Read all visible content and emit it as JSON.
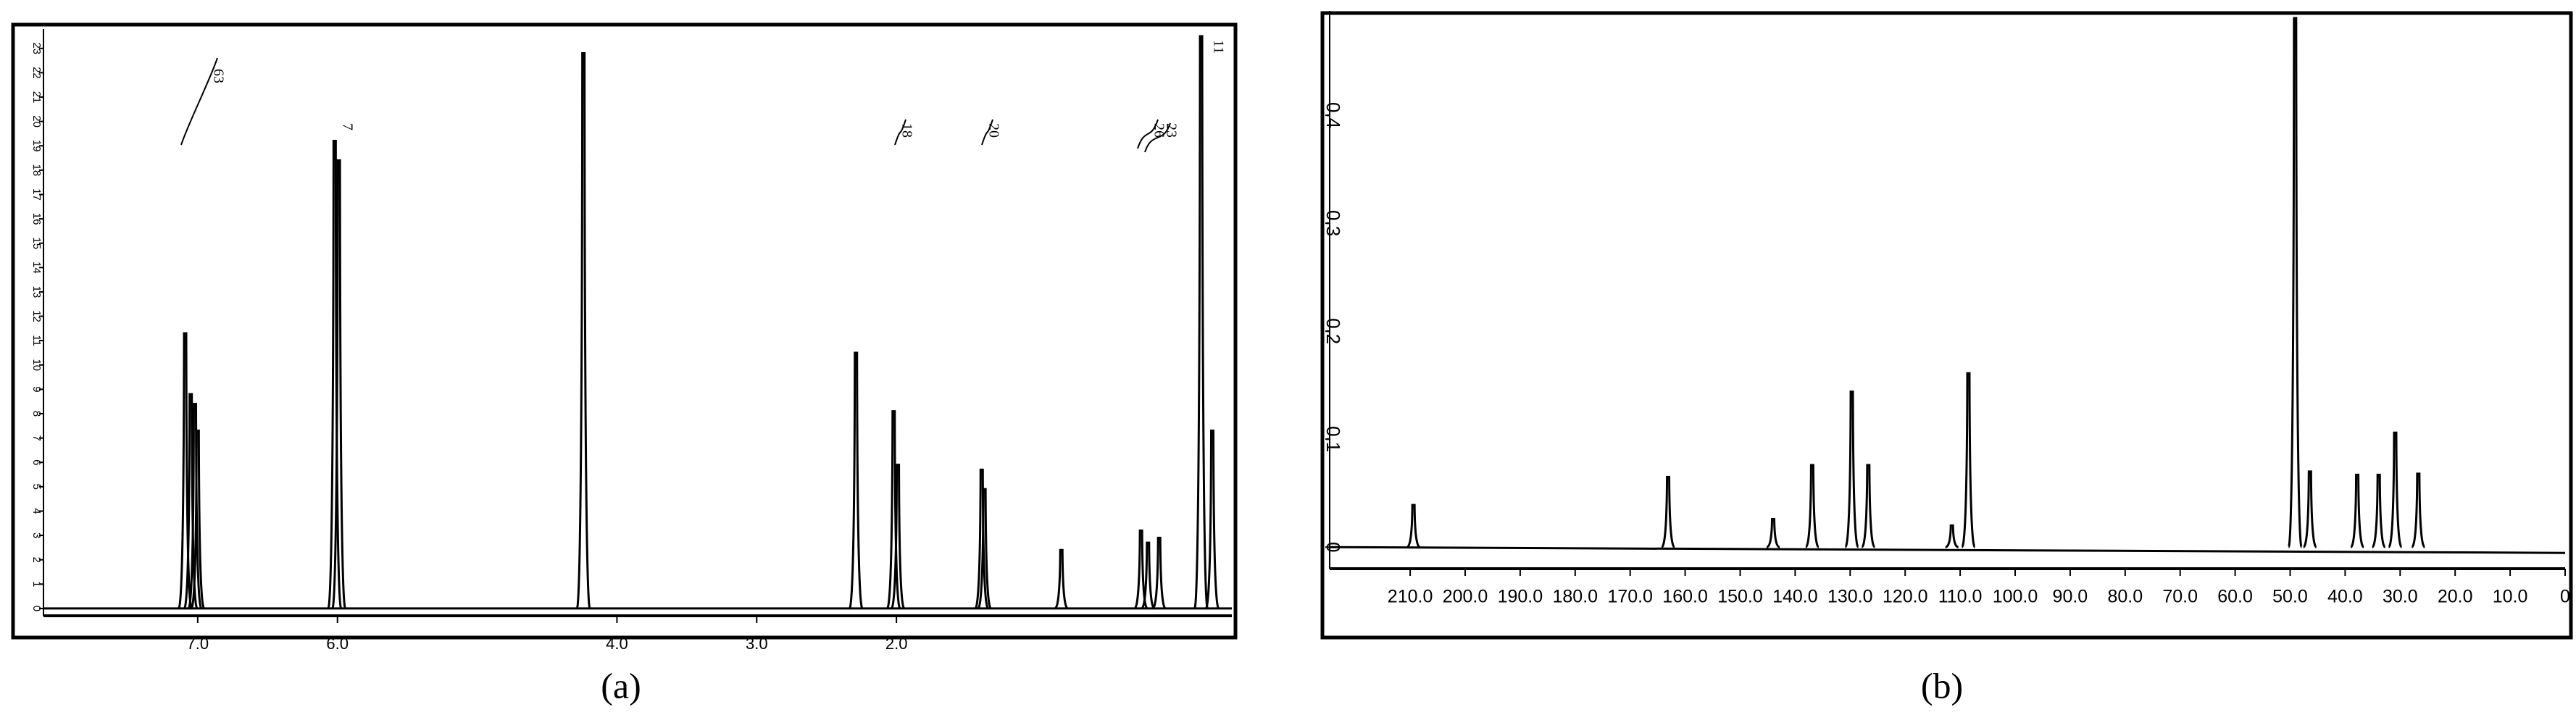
{
  "chart_data": [
    {
      "type": "spectrum",
      "caption": "(a)",
      "color": "#000000",
      "x": [
        7.09,
        7.05,
        7.02,
        7.0,
        6.02,
        5.99,
        4.24,
        2.29,
        2.02,
        1.99,
        1.39,
        1.37,
        0.82,
        0.25,
        0.2,
        0.12,
        -0.18,
        -0.26
      ],
      "values": [
        11.3,
        8.8,
        8.4,
        7.3,
        19.2,
        18.4,
        22.8,
        10.5,
        8.1,
        5.9,
        5.7,
        4.9,
        2.4,
        3.2,
        2.7,
        2.9,
        23.5,
        7.3
      ],
      "xlim": [
        8.0,
        -0.4
      ],
      "ylim": [
        -0.3,
        23.5
      ],
      "xticks": [
        {
          "value": 7.0,
          "label": "7.0"
        },
        {
          "value": 6.0,
          "label": "6.0"
        },
        {
          "value": 4.0,
          "label": "4.0"
        },
        {
          "value": 3.0,
          "label": "3.0"
        },
        {
          "value": 2.0,
          "label": "2.0"
        }
      ],
      "yticks": [
        0,
        1,
        2,
        3,
        4,
        5,
        6,
        7,
        8,
        9,
        10,
        11,
        12,
        13,
        14,
        15,
        16,
        17,
        18,
        19,
        20,
        21,
        22,
        23
      ],
      "annotations": [
        "63",
        "7",
        "18",
        "20",
        "26",
        "23",
        "11"
      ]
    },
    {
      "type": "spectrum",
      "caption": "(b)",
      "color": "#000000",
      "x": [
        209.4,
        163.1,
        144.0,
        136.9,
        129.7,
        126.7,
        111.5,
        108.5,
        49.1,
        46.4,
        37.8,
        33.9,
        30.9,
        26.7
      ],
      "values": [
        0.039,
        0.065,
        0.026,
        0.076,
        0.144,
        0.076,
        0.02,
        0.161,
        0.49,
        0.07,
        0.067,
        0.067,
        0.106,
        0.068
      ],
      "xlim": [
        222,
        0
      ],
      "ylim": [
        -0.02,
        0.49
      ],
      "xticks": [
        {
          "value": 210,
          "label": "210.0"
        },
        {
          "value": 200,
          "label": "200.0"
        },
        {
          "value": 190,
          "label": "190.0"
        },
        {
          "value": 180,
          "label": "180.0"
        },
        {
          "value": 170,
          "label": "170.0"
        },
        {
          "value": 160,
          "label": "160.0"
        },
        {
          "value": 150,
          "label": "150.0"
        },
        {
          "value": 140,
          "label": "140.0"
        },
        {
          "value": 130,
          "label": "130.0"
        },
        {
          "value": 120,
          "label": "120.0"
        },
        {
          "value": 110,
          "label": "110.0"
        },
        {
          "value": 100,
          "label": "100.0"
        },
        {
          "value": 90,
          "label": "90.0"
        },
        {
          "value": 80,
          "label": "80.0"
        },
        {
          "value": 70,
          "label": "70.0"
        },
        {
          "value": 60,
          "label": "60.0"
        },
        {
          "value": 50,
          "label": "50.0"
        },
        {
          "value": 40,
          "label": "40.0"
        },
        {
          "value": 30,
          "label": "30.0"
        },
        {
          "value": 20,
          "label": "20.0"
        },
        {
          "value": 10,
          "label": "10.0"
        },
        0
      ],
      "yticks": [
        0,
        0.1,
        0.2,
        0.3,
        0.4
      ]
    }
  ]
}
